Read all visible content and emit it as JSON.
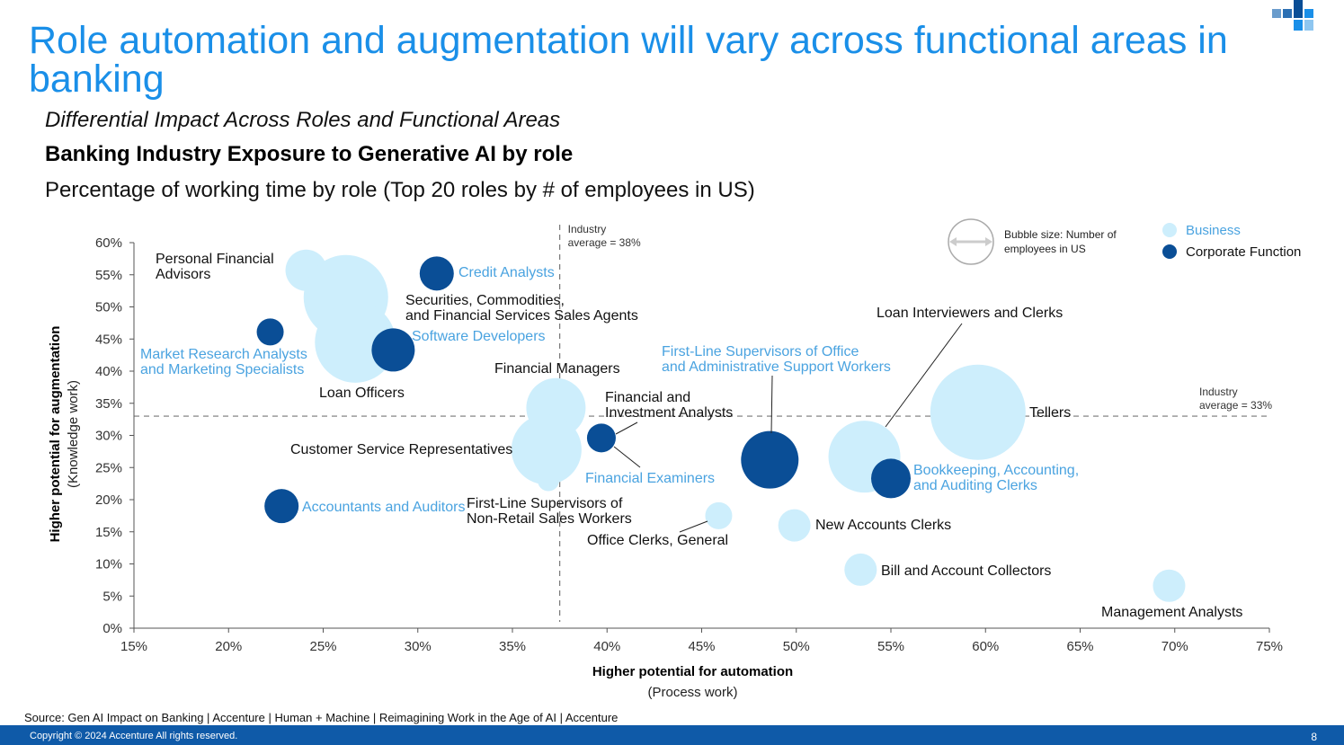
{
  "title": "Role automation and augmentation will vary across functional areas in banking",
  "subtitle_italic": "Differential Impact Across Roles and Functional Areas",
  "subtitle_bold": "Banking Industry Exposure to Generative AI by role",
  "subtitle_plain": "Percentage of working time by role (Top 20 roles by # of employees in US)",
  "source": "Source: Gen AI Impact on Banking | Accenture | Human + Machine | Reimagining Work in the Age of AI | Accenture",
  "copyright": "Copyright © 2024 Accenture All rights reserved.",
  "page_number": "8",
  "colors": {
    "title": "#1a8fe8",
    "business": "#cdeefc",
    "corporate": "#0a4e96",
    "business_label": "#4aa3e0",
    "footer": "#0f5aa8"
  },
  "chart_data": {
    "type": "scatter",
    "xlabel": "Higher potential for automation",
    "xlabel_sub": "(Process work)",
    "ylabel": "Higher potential for augmentation",
    "ylabel_sub": "(Knowledge work)",
    "xlim": [
      15,
      75
    ],
    "ylim": [
      0,
      60
    ],
    "x_ticks": [
      "15%",
      "20%",
      "25%",
      "30%",
      "35%",
      "40%",
      "45%",
      "50%",
      "55%",
      "60%",
      "65%",
      "70%",
      "75%"
    ],
    "y_ticks": [
      "0%",
      "5%",
      "10%",
      "15%",
      "20%",
      "25%",
      "30%",
      "35%",
      "40%",
      "45%",
      "50%",
      "55%",
      "60%"
    ],
    "reference_lines": [
      {
        "axis": "x",
        "value": 37.5,
        "label_line1": "Industry",
        "label_line2": "average = 38%"
      },
      {
        "axis": "y",
        "value": 33,
        "label_line1": "Industry",
        "label_line2": "average = 33%"
      }
    ],
    "legend": {
      "size_note_line1": "Bubble size: Number of",
      "size_note_line2": "employees in US",
      "series": [
        {
          "name": "Business",
          "type": "business"
        },
        {
          "name": "Corporate Function",
          "type": "corporate"
        }
      ]
    },
    "points": [
      {
        "label": "Personal Financial|Advisors",
        "x": 24.1,
        "y": 55.7,
        "size": 23,
        "type": "business"
      },
      {
        "label": "Securities, Commodities,|and Financial Services Sales Agents",
        "x": 26.2,
        "y": 51.5,
        "size": 47,
        "type": "business"
      },
      {
        "label": "Loan Officers",
        "x": 26.7,
        "y": 44.5,
        "size": 45,
        "type": "business"
      },
      {
        "label": "Credit Analysts",
        "x": 31.0,
        "y": 55.2,
        "size": 19,
        "type": "corporate"
      },
      {
        "label": "Software Developers",
        "x": 28.7,
        "y": 43.3,
        "size": 24,
        "type": "corporate"
      },
      {
        "label": "Market Research Analysts|and Marketing Specialists",
        "x": 22.2,
        "y": 46.1,
        "size": 15,
        "type": "corporate"
      },
      {
        "label": "Financial Managers",
        "x": 37.3,
        "y": 34.3,
        "size": 33,
        "type": "business"
      },
      {
        "label": "Customer Service Representatives",
        "x": 36.8,
        "y": 27.8,
        "size": 39,
        "type": "business"
      },
      {
        "label": "First-Line Supervisors of|Non-Retail Sales Workers",
        "x": 36.9,
        "y": 23.0,
        "size": 12,
        "type": "business"
      },
      {
        "label": "Accountants and Auditors",
        "x": 22.8,
        "y": 19.0,
        "size": 19,
        "type": "corporate"
      },
      {
        "label": "Financial and|Investment Analysts",
        "x": 39.7,
        "y": 29.6,
        "size": 16,
        "type": "corporate"
      },
      {
        "label": "Financial Examiners",
        "x": 39.7,
        "y": 29.6,
        "size": 16,
        "type": "business"
      },
      {
        "label": "First-Line Supervisors of Office|and Administrative Support Workers",
        "x": 48.6,
        "y": 26.2,
        "size": 32,
        "type": "corporate"
      },
      {
        "label": "Office Clerks, General",
        "x": 45.9,
        "y": 17.5,
        "size": 15,
        "type": "business"
      },
      {
        "label": "New Accounts Clerks",
        "x": 49.9,
        "y": 16.0,
        "size": 18,
        "type": "business"
      },
      {
        "label": "Loan Interviewers and Clerks",
        "x": 53.6,
        "y": 26.7,
        "size": 40,
        "type": "business"
      },
      {
        "label": "Bookkeeping, Accounting,|and Auditing Clerks",
        "x": 55.0,
        "y": 23.3,
        "size": 22,
        "type": "corporate"
      },
      {
        "label": "Tellers",
        "x": 59.6,
        "y": 33.6,
        "size": 53,
        "type": "business"
      },
      {
        "label": "Bill and Account Collectors",
        "x": 53.4,
        "y": 9.1,
        "size": 18,
        "type": "business"
      },
      {
        "label": "Management Analysts",
        "x": 69.7,
        "y": 6.6,
        "size": 18,
        "type": "business"
      }
    ]
  }
}
